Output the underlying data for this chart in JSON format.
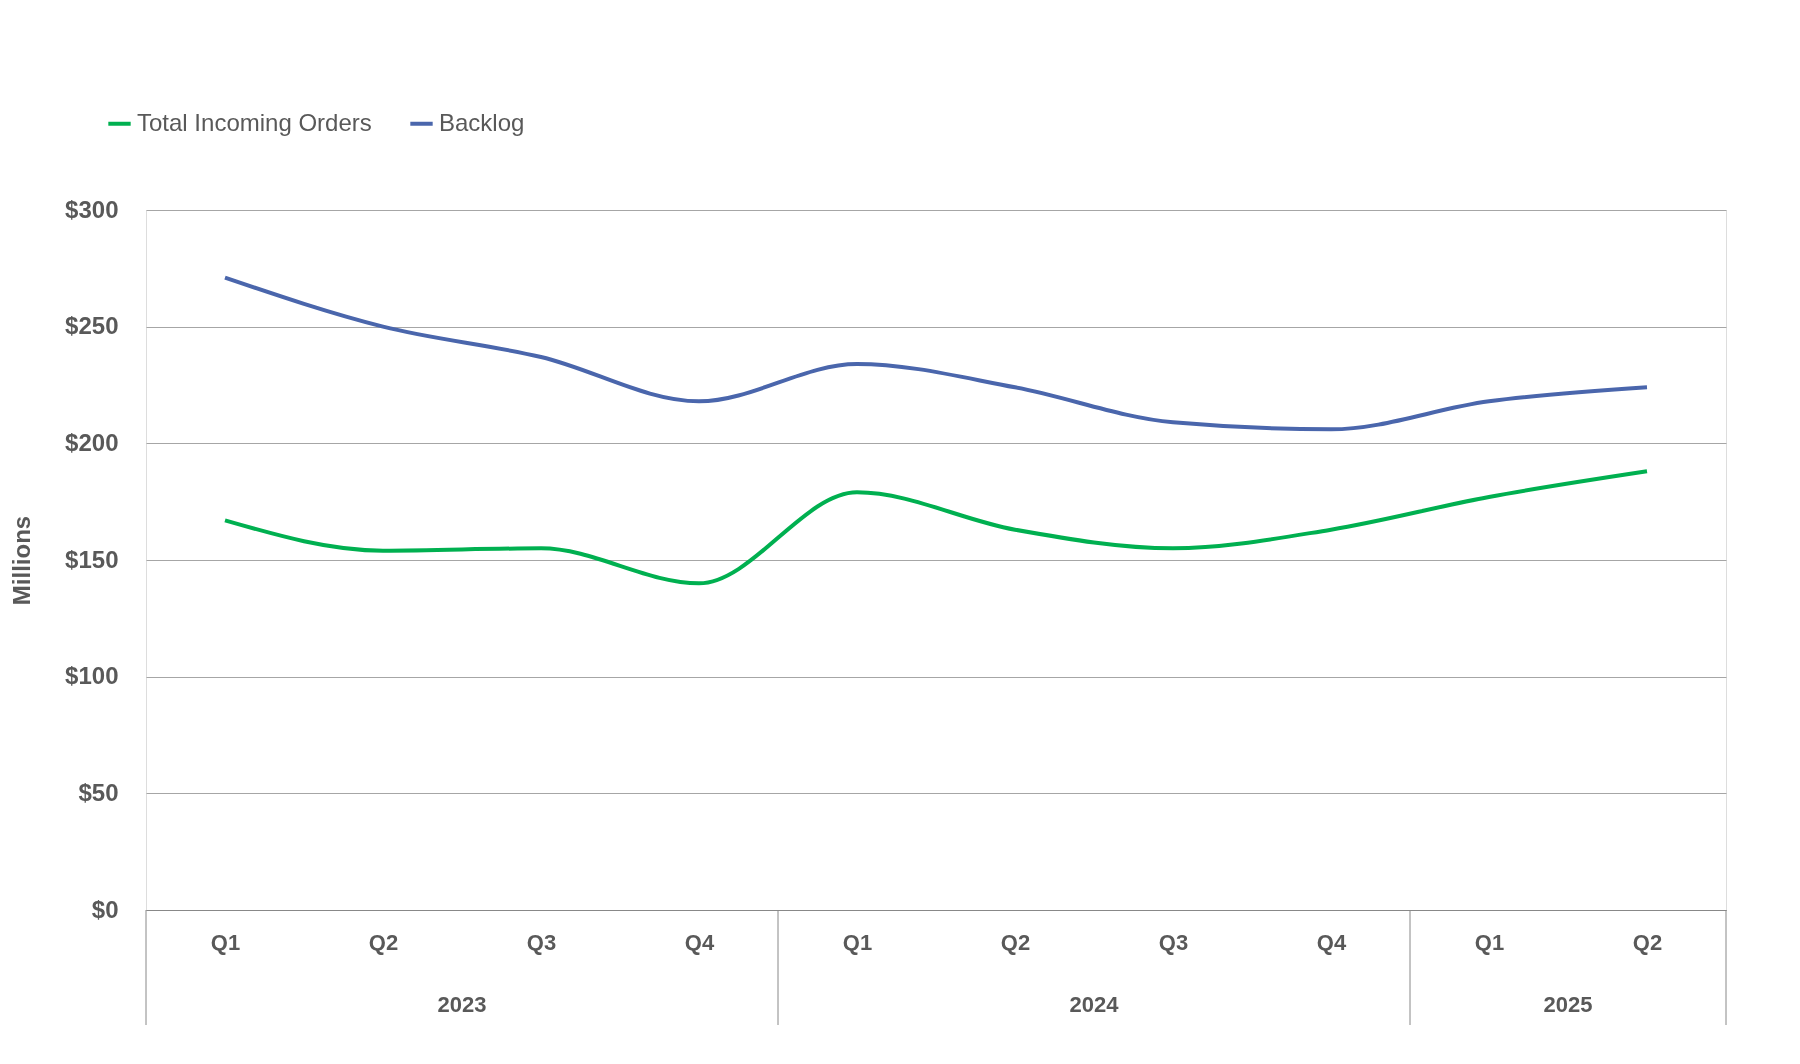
{
  "chart_data": {
    "type": "line",
    "ylabel": "Millions",
    "categories": [
      "Q1",
      "Q2",
      "Q3",
      "Q4",
      "Q1",
      "Q2",
      "Q3",
      "Q4",
      "Q1",
      "Q2"
    ],
    "series": [
      {
        "name": "Total Incoming Orders",
        "color": "#00b050",
        "values": [
          167,
          154,
          155,
          140,
          179,
          163,
          155,
          163,
          177,
          188
        ]
      },
      {
        "name": "Backlog",
        "color": "#4a66ac",
        "values": [
          271,
          250,
          237,
          218,
          234,
          224,
          209,
          206,
          218,
          224
        ]
      }
    ],
    "annotations": [
      "2023",
      "2024",
      "2025"
    ],
    "ylim": [
      0,
      300
    ],
    "yticks": [
      {
        "value": 0,
        "label": "$0"
      },
      {
        "value": 50,
        "label": "$50"
      },
      {
        "value": 100,
        "label": "$100"
      },
      {
        "value": 150,
        "label": "$150"
      },
      {
        "value": 200,
        "label": "$200"
      },
      {
        "value": 250,
        "label": "$250"
      },
      {
        "value": 300,
        "label": "$300"
      }
    ],
    "grid": "y",
    "legend": "top left",
    "marker": "none",
    "line_style": "solid"
  }
}
